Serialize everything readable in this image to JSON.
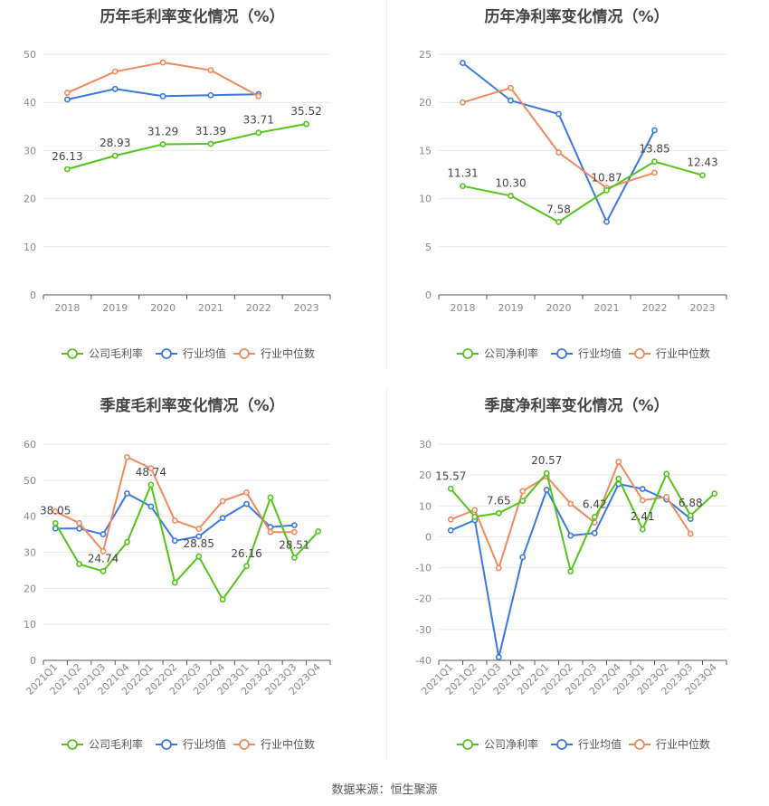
{
  "source": "数据来源：恒生聚源",
  "chart_data": [
    {
      "type": "line",
      "title": "历年毛利率变化情况（%）",
      "categories": [
        "2018",
        "2019",
        "2020",
        "2021",
        "2022",
        "2023"
      ],
      "ylim": [
        0,
        50
      ],
      "yticks": [
        0,
        10,
        20,
        30,
        40,
        50
      ],
      "grid": true,
      "legend_position": "bottom",
      "series": [
        {
          "name": "公司毛利率",
          "color": "#52c41a",
          "values": [
            26.13,
            28.93,
            31.29,
            31.39,
            33.71,
            35.52
          ],
          "labels": [
            "26.13",
            "28.93",
            "31.29",
            "31.39",
            "33.71",
            "35.52"
          ]
        },
        {
          "name": "行业均值",
          "color": "#3a78e0",
          "values": [
            40.6,
            42.8,
            41.3,
            41.5,
            41.7,
            null
          ]
        },
        {
          "name": "行业中位数",
          "color": "#f08a5d",
          "values": [
            42.0,
            46.4,
            48.3,
            46.7,
            41.3,
            null
          ]
        }
      ]
    },
    {
      "type": "line",
      "title": "历年净利率变化情况（%）",
      "categories": [
        "2018",
        "2019",
        "2020",
        "2021",
        "2022",
        "2023"
      ],
      "ylim": [
        0,
        25
      ],
      "yticks": [
        0,
        5,
        10,
        15,
        20,
        25
      ],
      "grid": true,
      "legend_position": "bottom",
      "series": [
        {
          "name": "公司净利率",
          "color": "#52c41a",
          "values": [
            11.31,
            10.3,
            7.58,
            10.87,
            13.85,
            12.43
          ],
          "labels": [
            "11.31",
            "10.30",
            "7.58",
            "10.87",
            "13.85",
            "12.43"
          ]
        },
        {
          "name": "行业均值",
          "color": "#3a78e0",
          "values": [
            24.1,
            20.2,
            18.8,
            7.6,
            17.1,
            null
          ]
        },
        {
          "name": "行业中位数",
          "color": "#f08a5d",
          "values": [
            20.0,
            21.5,
            14.8,
            11.1,
            12.7,
            null
          ]
        }
      ]
    },
    {
      "type": "line",
      "title": "季度毛利率变化情况（%）",
      "categories": [
        "2021Q1",
        "2021Q2",
        "2021Q3",
        "2021Q4",
        "2022Q1",
        "2022Q2",
        "2022Q3",
        "2022Q4",
        "2023Q1",
        "2023Q2",
        "2023Q3",
        "2023Q4"
      ],
      "ylim": [
        0,
        60
      ],
      "yticks": [
        0,
        10,
        20,
        30,
        40,
        50,
        60
      ],
      "grid": true,
      "legend_position": "bottom",
      "series": [
        {
          "name": "公司毛利率",
          "color": "#52c41a",
          "values": [
            38.05,
            26.7,
            24.74,
            32.8,
            48.74,
            21.6,
            28.85,
            16.9,
            26.16,
            45.2,
            28.51,
            35.8
          ],
          "labels": [
            "38.05",
            "",
            "24.74",
            "",
            "48.74",
            "",
            "28.85",
            "",
            "26.16",
            "",
            "28.51",
            ""
          ]
        },
        {
          "name": "行业均值",
          "color": "#3a78e0",
          "values": [
            36.6,
            36.6,
            35.0,
            46.3,
            42.7,
            33.2,
            34.4,
            39.5,
            43.4,
            37.0,
            37.5,
            null
          ]
        },
        {
          "name": "行业中位数",
          "color": "#f08a5d",
          "values": [
            41.3,
            38.1,
            30.3,
            56.4,
            53.3,
            38.8,
            36.5,
            44.2,
            46.6,
            35.6,
            35.6,
            null
          ]
        }
      ]
    },
    {
      "type": "line",
      "title": "季度净利率变化情况（%）",
      "categories": [
        "2021Q1",
        "2021Q2",
        "2021Q3",
        "2021Q4",
        "2022Q1",
        "2022Q2",
        "2022Q3",
        "2022Q4",
        "2023Q1",
        "2023Q2",
        "2023Q3",
        "2023Q4"
      ],
      "ylim": [
        -40,
        30
      ],
      "yticks": [
        -40,
        -30,
        -20,
        -10,
        0,
        10,
        20,
        30
      ],
      "grid": true,
      "legend_position": "bottom",
      "series": [
        {
          "name": "公司净利率",
          "color": "#52c41a",
          "values": [
            15.57,
            6.5,
            7.65,
            11.6,
            20.57,
            -11.2,
            6.42,
            18.8,
            2.41,
            20.4,
            6.88,
            14.0
          ],
          "labels": [
            "15.57",
            "",
            "7.65",
            "",
            "20.57",
            "",
            "6.42",
            "",
            "2.41",
            "",
            "6.88",
            ""
          ]
        },
        {
          "name": "行业均值",
          "color": "#3a78e0",
          "values": [
            2.1,
            5.4,
            -39.0,
            -6.6,
            15.2,
            0.4,
            1.2,
            17.1,
            15.5,
            12.1,
            5.8,
            null
          ]
        },
        {
          "name": "行业中位数",
          "color": "#f08a5d",
          "values": [
            5.6,
            8.7,
            -10.1,
            14.8,
            19.5,
            10.7,
            4.6,
            24.3,
            11.8,
            12.9,
            1.0,
            null
          ]
        }
      ]
    }
  ]
}
